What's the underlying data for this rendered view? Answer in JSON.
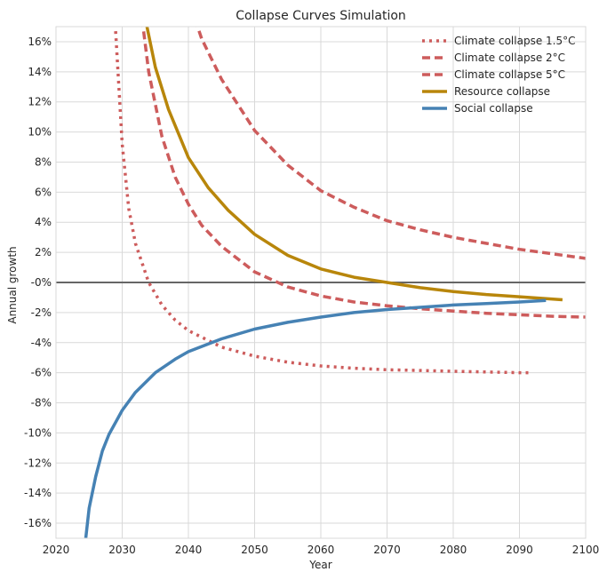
{
  "chart_data": {
    "type": "line",
    "title": "Collapse Curves Simulation",
    "xlabel": "Year",
    "ylabel": "Annual growth",
    "xlim": [
      2020,
      2100
    ],
    "ylim": [
      -17,
      17
    ],
    "x_ticks": [
      2020,
      2030,
      2040,
      2050,
      2060,
      2070,
      2080,
      2090,
      2100
    ],
    "y_ticks": [
      16,
      14,
      12,
      10,
      8,
      6,
      4,
      2,
      0,
      -2,
      -4,
      -6,
      -8,
      -10,
      -12,
      -14,
      -16
    ],
    "y_tick_labels": [
      "16%",
      "14%",
      "12%",
      "10%",
      "8%",
      "6%",
      "4%",
      "2%",
      "-0%",
      "-2%",
      "-4%",
      "-6%",
      "-8%",
      "-10%",
      "-12%",
      "-14%",
      "-16%"
    ],
    "grid": true,
    "legend_position": "top-right",
    "reference_line": {
      "y": 0,
      "color": "#666666"
    },
    "series": [
      {
        "name": "Climate collapse 1.5°C",
        "color": "#cd5c5c",
        "style": "dotted",
        "x": [
          2029,
          2030,
          2031,
          2032,
          2034,
          2036,
          2038,
          2040,
          2045,
          2050,
          2055,
          2060,
          2065,
          2070,
          2075,
          2080,
          2085,
          2090,
          2092
        ],
        "y": [
          16.7,
          9.2,
          4.9,
          2.6,
          0.0,
          -1.5,
          -2.5,
          -3.2,
          -4.3,
          -4.9,
          -5.3,
          -5.55,
          -5.7,
          -5.8,
          -5.85,
          -5.9,
          -5.95,
          -6.0,
          -6.0
        ]
      },
      {
        "name": "Climate collapse 2°C",
        "color": "#cd5c5c",
        "style": "dashed",
        "x": [
          2033,
          2034,
          2036,
          2038,
          2040,
          2042,
          2045,
          2050,
          2055,
          2060,
          2065,
          2070,
          2075,
          2080,
          2085,
          2090,
          2095,
          2100
        ],
        "y": [
          17.5,
          14.0,
          9.7,
          7.0,
          5.2,
          3.8,
          2.4,
          0.7,
          -0.3,
          -0.9,
          -1.3,
          -1.55,
          -1.75,
          -1.9,
          -2.05,
          -2.15,
          -2.25,
          -2.3
        ]
      },
      {
        "name": "Climate collapse 5°C",
        "color": "#cd5c5c",
        "style": "dashed",
        "x": [
          2041,
          2042,
          2045,
          2050,
          2055,
          2060,
          2065,
          2070,
          2075,
          2080,
          2085,
          2090,
          2095,
          2100
        ],
        "y": [
          17.5,
          16.2,
          13.5,
          10.1,
          7.8,
          6.1,
          5.0,
          4.1,
          3.5,
          3.0,
          2.6,
          2.2,
          1.9,
          1.6
        ]
      },
      {
        "name": "Resource collapse",
        "color": "#b8860b",
        "style": "solid",
        "x": [
          2033.5,
          2035,
          2037,
          2040,
          2043,
          2046,
          2050,
          2055,
          2060,
          2065,
          2070,
          2075,
          2080,
          2085,
          2090,
          2096.5
        ],
        "y": [
          17.5,
          14.3,
          11.5,
          8.3,
          6.3,
          4.8,
          3.2,
          1.8,
          0.9,
          0.35,
          0.0,
          -0.35,
          -0.6,
          -0.8,
          -0.95,
          -1.15
        ]
      },
      {
        "name": "Social collapse",
        "color": "#4682b4",
        "style": "solid",
        "x": [
          2024.5,
          2025,
          2026,
          2027,
          2028,
          2030,
          2032,
          2035,
          2038,
          2040,
          2045,
          2050,
          2055,
          2060,
          2065,
          2070,
          2075,
          2080,
          2085,
          2090,
          2094
        ],
        "y": [
          -17.0,
          -15.0,
          -12.9,
          -11.2,
          -10.1,
          -8.5,
          -7.3,
          -6.0,
          -5.1,
          -4.6,
          -3.75,
          -3.1,
          -2.65,
          -2.3,
          -2.0,
          -1.8,
          -1.65,
          -1.5,
          -1.4,
          -1.3,
          -1.2
        ]
      }
    ]
  }
}
